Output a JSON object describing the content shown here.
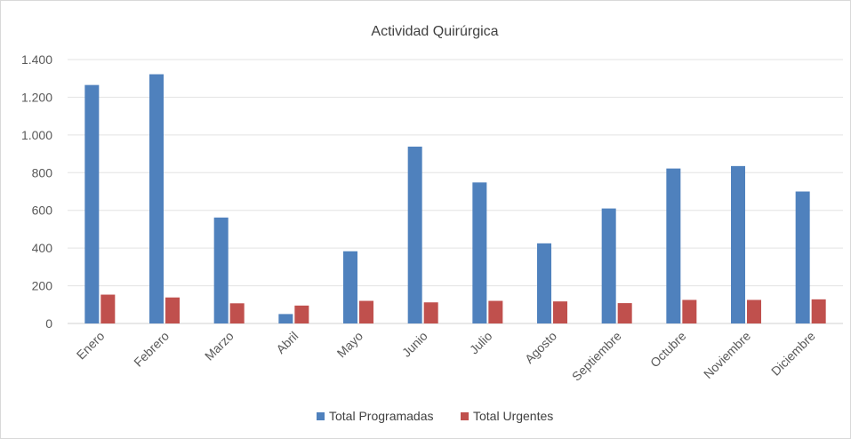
{
  "chart_data": {
    "type": "bar",
    "title": "Actividad Quirúrgica",
    "categories": [
      "Enero",
      "Febrero",
      "Marzo",
      "Abril",
      "Mayo",
      "Junio",
      "Julio",
      "Agosto",
      "Septiembre",
      "Octubre",
      "Noviembre",
      "Diciembre"
    ],
    "series": [
      {
        "name": "Total Programadas",
        "color": "#4f81bd",
        "values": [
          1265,
          1322,
          562,
          50,
          383,
          938,
          748,
          425,
          610,
          822,
          835,
          700
        ]
      },
      {
        "name": "Total Urgentes",
        "color": "#c0504d",
        "values": [
          153,
          138,
          107,
          95,
          120,
          112,
          120,
          117,
          108,
          125,
          125,
          128
        ]
      }
    ],
    "ylim": [
      0,
      1400
    ],
    "yticks": [
      0,
      200,
      400,
      600,
      800,
      1000,
      1200,
      1400
    ],
    "ytick_labels": [
      "0",
      "200",
      "400",
      "600",
      "800",
      "1.000",
      "1.200",
      "1.400"
    ],
    "grid": true,
    "legend_position": "bottom",
    "xlabel": "",
    "ylabel": ""
  }
}
